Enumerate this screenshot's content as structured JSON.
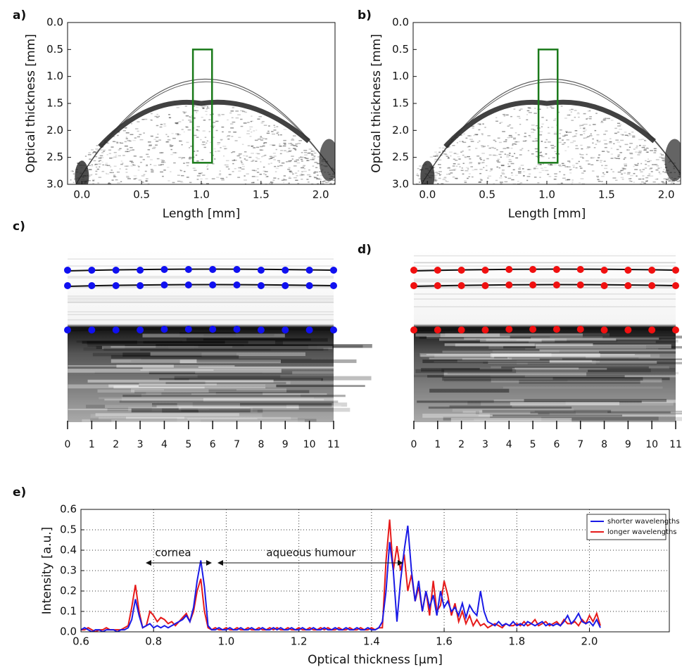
{
  "chart_data": [
    {
      "type": "image",
      "panel_label": "a)",
      "xlabel": "Length [mm]",
      "ylabel": "Optical thickness [mm]",
      "xlim": [
        -0.12,
        2.12
      ],
      "ylim": [
        3.0,
        0.0
      ],
      "xticks": [
        {
          "value": 0,
          "label": "0.0"
        },
        0.5,
        {
          "value": 1,
          "label": "1.0"
        },
        1.5,
        {
          "value": 2,
          "label": "2.0"
        }
      ],
      "yticks": [
        {
          "value": 0,
          "label": "0.0"
        },
        0.5,
        {
          "value": 1,
          "label": "1.0"
        },
        1.5,
        {
          "value": 2,
          "label": "2.0"
        },
        2.5,
        {
          "value": 3,
          "label": "3.0"
        }
      ],
      "highlight": {
        "x": [
          0.93,
          1.09
        ],
        "y": [
          0.5,
          2.6
        ],
        "color": "#1a7a1a"
      }
    },
    {
      "type": "image",
      "panel_label": "b)",
      "xlabel": "Length [mm]",
      "ylabel": "Optical thickness [mm]",
      "xlim": [
        -0.12,
        2.12
      ],
      "ylim": [
        3.0,
        0.0
      ],
      "xticks": [
        {
          "value": 0,
          "label": "0.0"
        },
        0.5,
        {
          "value": 1,
          "label": "1.0"
        },
        1.5,
        {
          "value": 2,
          "label": "2.0"
        }
      ],
      "yticks": [
        {
          "value": 0,
          "label": "0.0"
        },
        0.5,
        {
          "value": 1,
          "label": "1.0"
        },
        1.5,
        {
          "value": 2,
          "label": "2.0"
        },
        2.5,
        {
          "value": 3,
          "label": "3.0"
        }
      ],
      "highlight": {
        "x": [
          0.93,
          1.09
        ],
        "y": [
          0.5,
          2.6
        ],
        "color": "#1a7a1a"
      }
    },
    {
      "type": "strip",
      "panel_label": "c)",
      "xlim": [
        0,
        11
      ],
      "xticks": [
        0,
        1,
        2,
        3,
        4,
        5,
        6,
        7,
        8,
        9,
        10,
        11
      ],
      "marker_color": "#1010f0"
    },
    {
      "type": "strip",
      "panel_label": "d)",
      "xlim": [
        0,
        11
      ],
      "xticks": [
        0,
        1,
        2,
        3,
        4,
        5,
        6,
        7,
        8,
        9,
        10,
        11
      ],
      "marker_color": "#f01010"
    },
    {
      "type": "line",
      "panel_label": "e)",
      "xlabel": "Optical thickness [μm]",
      "ylabel": "Intensity [a.u.]",
      "xlim": [
        0.6,
        2.22
      ],
      "ylim": [
        0,
        0.6
      ],
      "xticks": [
        0.6,
        0.8,
        {
          "value": 1,
          "label": "1.0"
        },
        1.2,
        1.4,
        1.6,
        1.8,
        {
          "value": 2,
          "label": "2.0"
        }
      ],
      "yticks": [
        {
          "value": 0,
          "label": "0.0"
        },
        0.1,
        0.2,
        0.3,
        0.4,
        0.5,
        0.6
      ],
      "grid": true,
      "legend": "upper right",
      "annotations": [
        "cornea",
        "aqueous humour"
      ],
      "x": [
        0.6,
        0.61,
        0.62,
        0.63,
        0.64,
        0.65,
        0.66,
        0.67,
        0.68,
        0.69,
        0.7,
        0.71,
        0.72,
        0.73,
        0.74,
        0.75,
        0.76,
        0.77,
        0.78,
        0.79,
        0.8,
        0.81,
        0.82,
        0.83,
        0.84,
        0.85,
        0.86,
        0.87,
        0.88,
        0.89,
        0.9,
        0.91,
        0.92,
        0.93,
        0.94,
        0.95,
        0.96,
        0.97,
        0.98,
        0.99,
        1.0,
        1.01,
        1.02,
        1.03,
        1.04,
        1.05,
        1.06,
        1.07,
        1.08,
        1.09,
        1.1,
        1.11,
        1.12,
        1.13,
        1.14,
        1.15,
        1.16,
        1.17,
        1.18,
        1.19,
        1.2,
        1.21,
        1.22,
        1.23,
        1.24,
        1.25,
        1.26,
        1.27,
        1.28,
        1.29,
        1.3,
        1.31,
        1.32,
        1.33,
        1.34,
        1.35,
        1.36,
        1.37,
        1.38,
        1.39,
        1.4,
        1.41,
        1.42,
        1.43,
        1.44,
        1.45,
        1.46,
        1.47,
        1.48,
        1.49,
        1.5,
        1.51,
        1.52,
        1.53,
        1.54,
        1.55,
        1.56,
        1.57,
        1.58,
        1.59,
        1.6,
        1.61,
        1.62,
        1.63,
        1.64,
        1.65,
        1.66,
        1.67,
        1.68,
        1.69,
        1.7,
        1.71,
        1.72,
        1.73,
        1.74,
        1.75,
        1.76,
        1.77,
        1.78,
        1.79,
        1.8,
        1.81,
        1.82,
        1.83,
        1.84,
        1.85,
        1.86,
        1.87,
        1.88,
        1.89,
        1.9,
        1.91,
        1.92,
        1.93,
        1.94,
        1.95,
        1.96,
        1.97,
        1.98,
        1.99,
        2.0,
        2.01,
        2.02,
        2.03
      ],
      "series": [
        {
          "name": "shorter wavelengths",
          "color": "#1a1ae6",
          "values": [
            0.01,
            0.02,
            0.01,
            0.0,
            0.01,
            0.01,
            0.0,
            0.01,
            0.01,
            0.01,
            0.0,
            0.01,
            0.01,
            0.02,
            0.06,
            0.16,
            0.08,
            0.02,
            0.03,
            0.04,
            0.02,
            0.03,
            0.02,
            0.03,
            0.02,
            0.03,
            0.04,
            0.05,
            0.06,
            0.08,
            0.05,
            0.12,
            0.25,
            0.35,
            0.22,
            0.03,
            0.01,
            0.01,
            0.02,
            0.01,
            0.01,
            0.02,
            0.01,
            0.01,
            0.02,
            0.01,
            0.01,
            0.02,
            0.01,
            0.01,
            0.02,
            0.01,
            0.01,
            0.02,
            0.01,
            0.02,
            0.01,
            0.01,
            0.02,
            0.01,
            0.01,
            0.02,
            0.01,
            0.01,
            0.02,
            0.01,
            0.01,
            0.02,
            0.01,
            0.01,
            0.02,
            0.01,
            0.01,
            0.02,
            0.01,
            0.01,
            0.02,
            0.01,
            0.01,
            0.02,
            0.01,
            0.01,
            0.02,
            0.05,
            0.2,
            0.44,
            0.3,
            0.05,
            0.25,
            0.4,
            0.52,
            0.3,
            0.15,
            0.25,
            0.1,
            0.2,
            0.12,
            0.18,
            0.08,
            0.2,
            0.12,
            0.15,
            0.1,
            0.12,
            0.08,
            0.14,
            0.07,
            0.13,
            0.1,
            0.08,
            0.2,
            0.1,
            0.05,
            0.04,
            0.03,
            0.05,
            0.03,
            0.04,
            0.03,
            0.05,
            0.03,
            0.04,
            0.03,
            0.05,
            0.04,
            0.03,
            0.04,
            0.05,
            0.03,
            0.04,
            0.03,
            0.04,
            0.03,
            0.05,
            0.08,
            0.04,
            0.06,
            0.09,
            0.05,
            0.04,
            0.05,
            0.03,
            0.06,
            0.02
          ]
        },
        {
          "name": "longer wavelengths",
          "color": "#e61a1a",
          "values": [
            0.01,
            0.01,
            0.02,
            0.01,
            0.0,
            0.01,
            0.01,
            0.02,
            0.01,
            0.01,
            0.01,
            0.01,
            0.02,
            0.03,
            0.12,
            0.23,
            0.1,
            0.02,
            0.03,
            0.1,
            0.08,
            0.05,
            0.07,
            0.06,
            0.04,
            0.05,
            0.03,
            0.05,
            0.07,
            0.09,
            0.05,
            0.1,
            0.2,
            0.26,
            0.1,
            0.02,
            0.01,
            0.02,
            0.01,
            0.01,
            0.02,
            0.01,
            0.01,
            0.02,
            0.01,
            0.01,
            0.02,
            0.01,
            0.01,
            0.02,
            0.01,
            0.01,
            0.02,
            0.01,
            0.02,
            0.01,
            0.01,
            0.02,
            0.01,
            0.01,
            0.02,
            0.01,
            0.01,
            0.02,
            0.01,
            0.01,
            0.02,
            0.01,
            0.02,
            0.01,
            0.01,
            0.02,
            0.01,
            0.01,
            0.02,
            0.01,
            0.01,
            0.02,
            0.01,
            0.01,
            0.02,
            0.01,
            0.02,
            0.02,
            0.35,
            0.55,
            0.3,
            0.42,
            0.3,
            0.38,
            0.2,
            0.28,
            0.15,
            0.22,
            0.1,
            0.2,
            0.08,
            0.25,
            0.1,
            0.13,
            0.25,
            0.18,
            0.08,
            0.14,
            0.05,
            0.1,
            0.04,
            0.08,
            0.03,
            0.06,
            0.03,
            0.04,
            0.02,
            0.03,
            0.04,
            0.03,
            0.02,
            0.04,
            0.03,
            0.03,
            0.04,
            0.03,
            0.05,
            0.03,
            0.04,
            0.06,
            0.03,
            0.04,
            0.05,
            0.03,
            0.04,
            0.05,
            0.03,
            0.06,
            0.04,
            0.04,
            0.05,
            0.03,
            0.06,
            0.04,
            0.08,
            0.05,
            0.09,
            0.03
          ]
        }
      ]
    }
  ]
}
